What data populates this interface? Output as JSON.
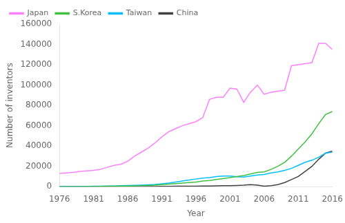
{
  "chart_data": {
    "type": "line",
    "x": [
      1976,
      1977,
      1978,
      1979,
      1980,
      1981,
      1982,
      1983,
      1984,
      1985,
      1986,
      1987,
      1988,
      1989,
      1990,
      1991,
      1992,
      1993,
      1994,
      1995,
      1996,
      1997,
      1998,
      1999,
      2000,
      2001,
      2002,
      2003,
      2004,
      2005,
      2006,
      2007,
      2008,
      2009,
      2010,
      2011,
      2012,
      2013,
      2014,
      2015,
      2016
    ],
    "series": [
      {
        "name": "Japan",
        "color": "#FF80FF",
        "values": [
          13000,
          13500,
          14000,
          15000,
          15500,
          16000,
          17000,
          19000,
          21000,
          22000,
          25000,
          30000,
          34000,
          38000,
          43000,
          49000,
          54000,
          57000,
          60000,
          62000,
          64000,
          68000,
          86000,
          88000,
          88000,
          97000,
          96000,
          83000,
          93000,
          100000,
          91000,
          93000,
          94000,
          95000,
          119000,
          120000,
          121000,
          122000,
          141000,
          141000,
          135000
        ]
      },
      {
        "name": "S.Korea",
        "color": "#40C040",
        "values": [
          0,
          0,
          0,
          0,
          100,
          200,
          300,
          400,
          500,
          600,
          700,
          800,
          900,
          1200,
          1500,
          2000,
          2500,
          3000,
          3500,
          4000,
          4500,
          5500,
          6000,
          7000,
          8000,
          9000,
          10000,
          11000,
          12500,
          14000,
          14500,
          17000,
          20000,
          24000,
          30000,
          37000,
          44000,
          52000,
          62000,
          71000,
          74000
        ]
      },
      {
        "name": "Taiwan",
        "color": "#00BFFF",
        "values": [
          0,
          0,
          0,
          0,
          200,
          400,
          500,
          600,
          700,
          900,
          1100,
          1300,
          1500,
          1800,
          2200,
          2800,
          3500,
          4500,
          5500,
          6500,
          7500,
          8500,
          9000,
          10000,
          10500,
          10500,
          9800,
          9500,
          10500,
          11500,
          12000,
          13500,
          14500,
          16000,
          18000,
          21000,
          24000,
          26000,
          29000,
          33000,
          34000
        ]
      },
      {
        "name": "China",
        "color": "#404040",
        "values": [
          0,
          0,
          0,
          0,
          0,
          0,
          0,
          0,
          0,
          100,
          100,
          100,
          100,
          200,
          200,
          300,
          300,
          400,
          400,
          500,
          500,
          600,
          700,
          800,
          900,
          1000,
          1200,
          1500,
          2000,
          1500,
          500,
          1000,
          2000,
          4000,
          7000,
          10000,
          15000,
          20000,
          27000,
          33000,
          35000
        ]
      }
    ],
    "xlabel": "Year",
    "ylabel": "Number of inventors",
    "xlim": [
      1976,
      2016
    ],
    "ylim": [
      0,
      160000
    ],
    "xticks": [
      1976,
      1981,
      1986,
      1991,
      1996,
      2001,
      2006,
      2011,
      2016
    ],
    "yticks": [
      0,
      20000,
      40000,
      60000,
      80000,
      100000,
      120000,
      140000,
      160000
    ],
    "legend": "upper left",
    "grid": false
  }
}
